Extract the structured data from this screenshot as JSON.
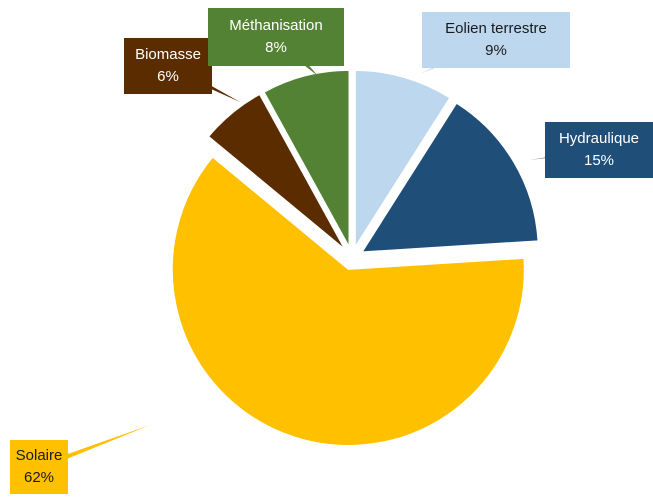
{
  "chart_data": {
    "type": "pie",
    "categories": [
      "Eolien terrestre",
      "Hydraulique",
      "Solaire",
      "Biomasse",
      "Méthanisation"
    ],
    "values": [
      9,
      15,
      62,
      6,
      8
    ],
    "value_labels": [
      "9%",
      "15%",
      "62%",
      "6%",
      "8%"
    ],
    "colors": [
      "#bdd7ee",
      "#1f4e79",
      "#ffc000",
      "#5b2c00",
      "#548235"
    ],
    "label_colors": [
      "#1a1a1a",
      "#ffffff",
      "#1a1a1a",
      "#ffffff",
      "#ffffff"
    ],
    "exploded": true
  }
}
